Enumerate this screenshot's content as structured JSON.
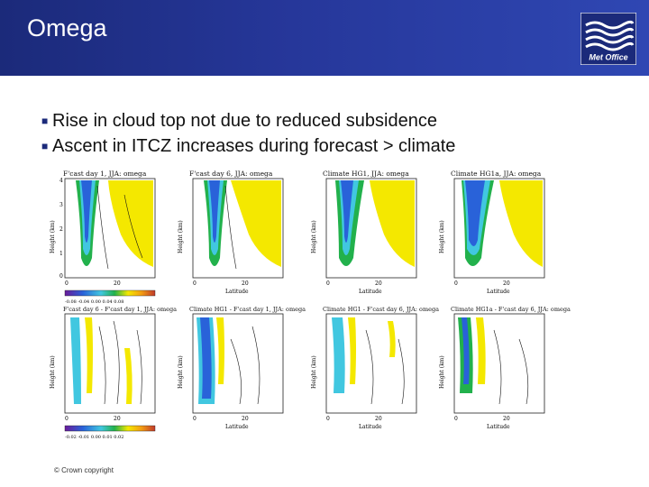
{
  "slide": {
    "title": "Omega",
    "logo_text": "Met Office",
    "bullets": [
      "Rise in cloud top not due to reduced subsidence",
      "Ascent in ITCZ increases during forecast > climate"
    ],
    "copyright": "© Crown copyright"
  },
  "colors": {
    "header": "#1b2a7a",
    "yellow": "#f4e800",
    "blue": "#2962d9",
    "green": "#22b14c",
    "cyan": "#41c7e0"
  },
  "figure": {
    "top_row": [
      {
        "title": "F'cast day 1, JJA: omega",
        "ylabel": "Height (km)",
        "xlabel": ""
      },
      {
        "title": "F'cast day 6, JJA: omega",
        "ylabel": "Height (km)",
        "xlabel": "Latitude"
      },
      {
        "title": "Climate HG1, JJA: omega",
        "ylabel": "Height (km)",
        "xlabel": "Latitude"
      },
      {
        "title": "Climate HG1a, JJA: omega",
        "ylabel": "Height (km)",
        "xlabel": "Latitude"
      }
    ],
    "bottom_row": [
      {
        "title": "F'cast day 6 - F'cast day 1, JJA: omega",
        "ylabel": "Height (km)",
        "xlabel": ""
      },
      {
        "title": "Climate HG1 - F'cast day 1, JJA: omega",
        "ylabel": "Height (km)",
        "xlabel": "Latitude"
      },
      {
        "title": "Climate HG1 - F'cast day 6, JJA: omega",
        "ylabel": "Height (km)",
        "xlabel": "Latitude"
      },
      {
        "title": "Climate HG1a - F'cast day 6, JJA: omega",
        "ylabel": "Height (km)",
        "xlabel": "Latitude"
      }
    ],
    "y_ticks": [
      "0",
      "1",
      "2",
      "3",
      "4"
    ],
    "x_ticks": [
      "0",
      "20"
    ],
    "colorbar_top": "-0.08 -0.04 0.00 0.04 0.08",
    "colorbar_bottom": "-0.02 -0.01 0.00 0.01 0.02"
  }
}
